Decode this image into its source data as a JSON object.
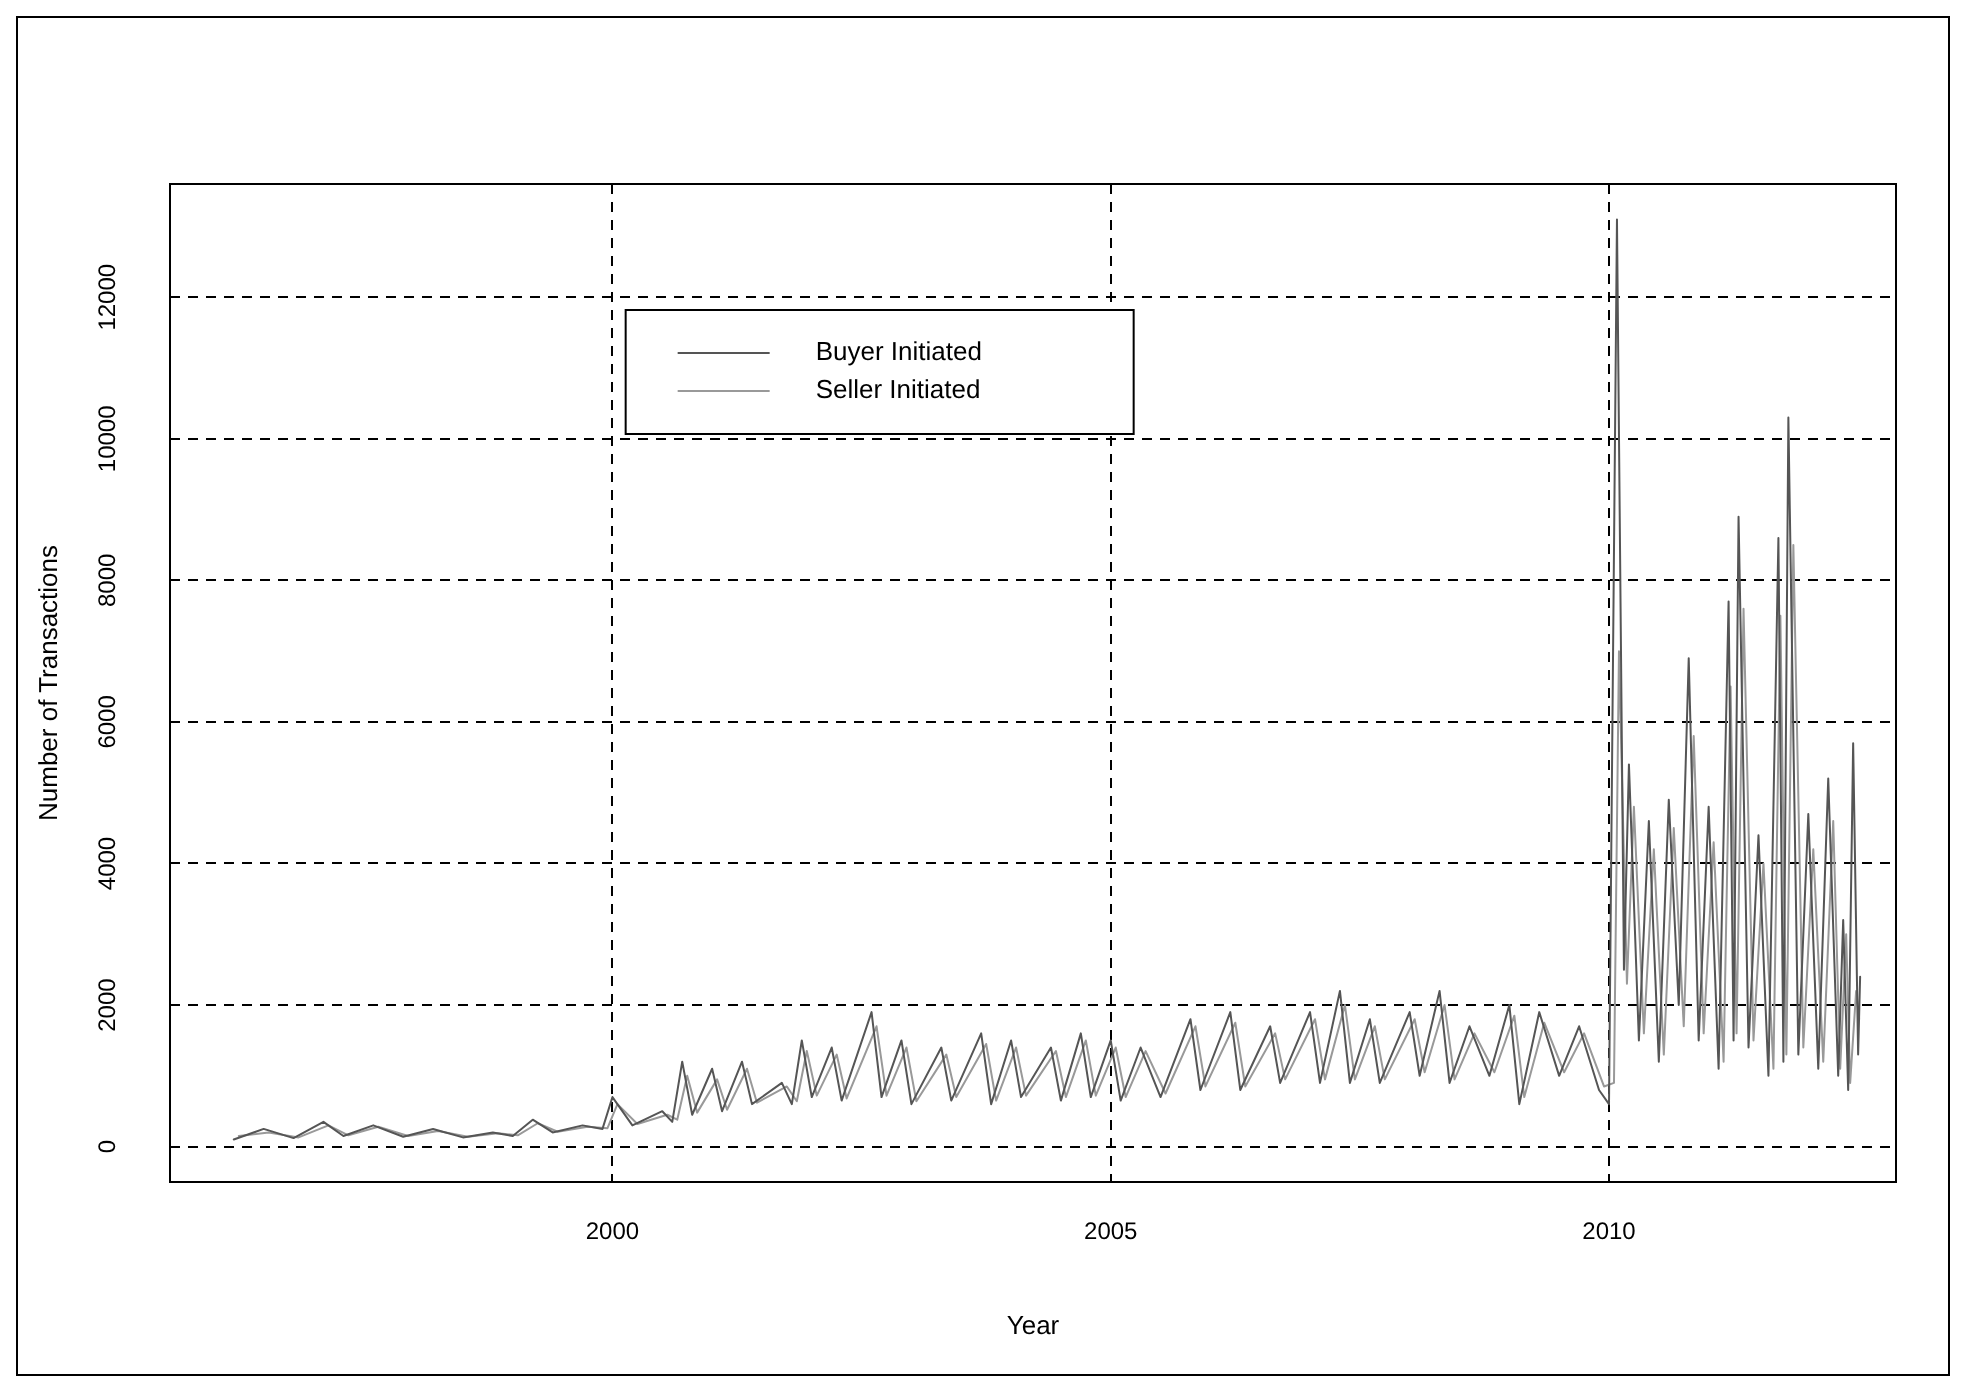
{
  "chart_data": {
    "type": "line",
    "xlabel": "Year",
    "ylabel": "Number of Transactions",
    "xlim": [
      1995.56,
      2012.88
    ],
    "xticks": [
      2000,
      2005,
      2010
    ],
    "ylim": [
      -500,
      13600
    ],
    "yticks": [
      0,
      2000,
      4000,
      6000,
      8000,
      10000,
      12000
    ],
    "grid": true,
    "legend": "top left",
    "marker": "none",
    "line_style": "solid",
    "series": [
      {
        "name": "Buyer Initiated",
        "color": "#555555",
        "x": [
          1996.2,
          1996.5,
          1996.8,
          1997.1,
          1997.3,
          1997.6,
          1997.9,
          1998.2,
          1998.5,
          1998.8,
          1999.0,
          1999.2,
          1999.4,
          1999.7,
          1999.9,
          2000.0,
          2000.2,
          2000.5,
          2000.6,
          2000.7,
          2000.8,
          2001.0,
          2001.1,
          2001.3,
          2001.4,
          2001.7,
          2001.8,
          2001.9,
          2002.0,
          2002.2,
          2002.3,
          2002.6,
          2002.7,
          2002.9,
          2003.0,
          2003.3,
          2003.4,
          2003.7,
          2003.8,
          2004.0,
          2004.1,
          2004.4,
          2004.5,
          2004.7,
          2004.8,
          2005.0,
          2005.1,
          2005.3,
          2005.5,
          2005.8,
          2005.9,
          2006.2,
          2006.3,
          2006.6,
          2006.7,
          2007.0,
          2007.1,
          2007.3,
          2007.4,
          2007.6,
          2007.7,
          2008.0,
          2008.1,
          2008.3,
          2008.4,
          2008.6,
          2008.8,
          2009.0,
          2009.1,
          2009.3,
          2009.5,
          2009.7,
          2009.9,
          2010.0,
          2010.08,
          2010.15,
          2010.2,
          2010.3,
          2010.4,
          2010.5,
          2010.6,
          2010.7,
          2010.8,
          2010.9,
          2011.0,
          2011.1,
          2011.2,
          2011.25,
          2011.3,
          2011.4,
          2011.5,
          2011.6,
          2011.7,
          2011.75,
          2011.8,
          2011.9,
          2012.0,
          2012.1,
          2012.2,
          2012.3,
          2012.35,
          2012.4,
          2012.45,
          2012.5,
          2012.52
        ],
        "values": [
          100,
          250,
          120,
          350,
          150,
          300,
          140,
          250,
          130,
          200,
          150,
          380,
          200,
          300,
          250,
          700,
          300,
          500,
          350,
          1200,
          450,
          1100,
          500,
          1200,
          600,
          900,
          600,
          1500,
          700,
          1400,
          650,
          1900,
          700,
          1500,
          600,
          1400,
          650,
          1600,
          600,
          1500,
          700,
          1400,
          650,
          1600,
          700,
          1500,
          650,
          1400,
          700,
          1800,
          800,
          1900,
          800,
          1700,
          900,
          1900,
          900,
          2200,
          900,
          1800,
          900,
          1900,
          1000,
          2200,
          900,
          1700,
          1000,
          2000,
          600,
          1900,
          1000,
          1700,
          800,
          600,
          13100,
          2500,
          5400,
          1500,
          4600,
          1200,
          4900,
          2000,
          6900,
          1500,
          4800,
          1100,
          7700,
          1500,
          8900,
          1400,
          4400,
          1000,
          8600,
          1200,
          10300,
          1300,
          4700,
          1100,
          5200,
          1000,
          3200,
          800,
          5700,
          1300,
          2400
        ]
      },
      {
        "name": "Seller Initiated",
        "color": "#999999",
        "x": [
          1996.25,
          1996.55,
          1996.85,
          1997.15,
          1997.35,
          1997.65,
          1997.95,
          1998.25,
          1998.55,
          1998.85,
          1999.05,
          1999.25,
          1999.45,
          1999.75,
          1999.95,
          2000.05,
          2000.25,
          2000.55,
          2000.65,
          2000.75,
          2000.85,
          2001.05,
          2001.15,
          2001.35,
          2001.45,
          2001.75,
          2001.85,
          2001.95,
          2002.05,
          2002.25,
          2002.35,
          2002.65,
          2002.75,
          2002.95,
          2003.05,
          2003.35,
          2003.45,
          2003.75,
          2003.85,
          2004.05,
          2004.15,
          2004.45,
          2004.55,
          2004.75,
          2004.85,
          2005.05,
          2005.15,
          2005.35,
          2005.55,
          2005.85,
          2005.95,
          2006.25,
          2006.35,
          2006.65,
          2006.75,
          2007.05,
          2007.15,
          2007.35,
          2007.45,
          2007.65,
          2007.75,
          2008.05,
          2008.15,
          2008.35,
          2008.45,
          2008.65,
          2008.85,
          2009.05,
          2009.15,
          2009.35,
          2009.55,
          2009.75,
          2009.95,
          2010.05,
          2010.1,
          2010.18,
          2010.25,
          2010.35,
          2010.45,
          2010.55,
          2010.65,
          2010.75,
          2010.85,
          2010.95,
          2011.05,
          2011.15,
          2011.22,
          2011.28,
          2011.35,
          2011.45,
          2011.55,
          2011.65,
          2011.72,
          2011.78,
          2011.85,
          2011.95,
          2012.05,
          2012.15,
          2012.25,
          2012.32,
          2012.38,
          2012.42,
          2012.48,
          2012.51
        ],
        "values": [
          150,
          200,
          130,
          300,
          160,
          280,
          150,
          220,
          140,
          190,
          160,
          330,
          210,
          280,
          260,
          600,
          320,
          450,
          380,
          1000,
          480,
          950,
          520,
          1100,
          620,
          850,
          640,
          1350,
          720,
          1300,
          680,
          1700,
          720,
          1400,
          640,
          1300,
          700,
          1450,
          650,
          1400,
          720,
          1350,
          700,
          1500,
          720,
          1400,
          700,
          1350,
          750,
          1700,
          850,
          1750,
          850,
          1600,
          950,
          1800,
          950,
          2000,
          950,
          1700,
          950,
          1800,
          1050,
          2000,
          950,
          1600,
          1050,
          1850,
          700,
          1750,
          1050,
          1600,
          850,
          900,
          7000,
          2300,
          4800,
          1600,
          4200,
          1300,
          4500,
          1700,
          5800,
          1600,
          4300,
          1200,
          6500,
          1600,
          7600,
          1500,
          4000,
          1100,
          7500,
          1300,
          8500,
          1400,
          4200,
          1200,
          4600,
          1100,
          3000,
          900,
          2200,
          1800
        ]
      }
    ]
  }
}
